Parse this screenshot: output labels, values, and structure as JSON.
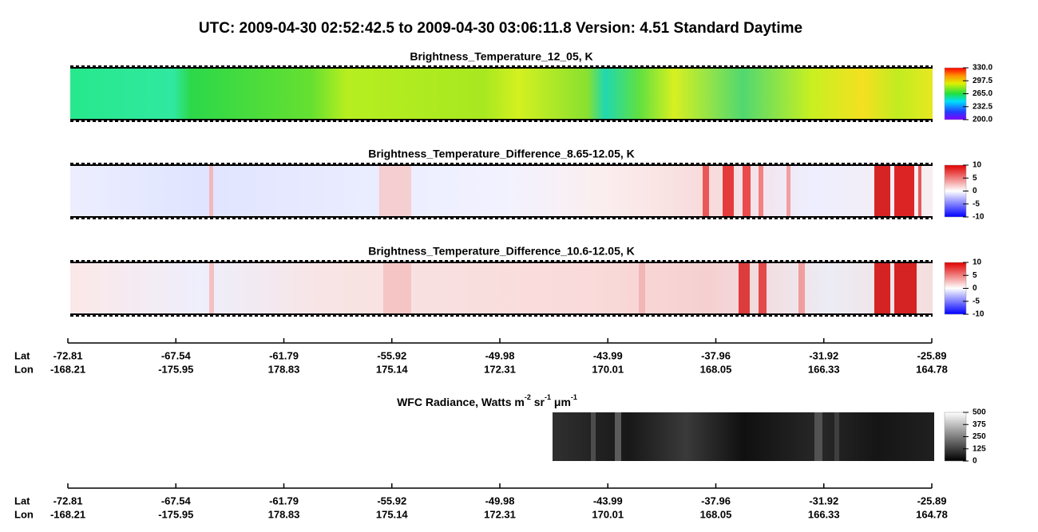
{
  "title": "UTC:  2009-04-30   02:52:42.5  to  2009-04-30   03:06:11.8    Version: 4.51  Standard Daytime",
  "panels": [
    {
      "title": "Brightness_Temperature_12_05, K",
      "colormap": "rainbow",
      "clim": [
        200,
        330
      ],
      "ticks": [
        {
          "value": 330,
          "label": "330.0"
        },
        {
          "value": 297.5,
          "label": "297.5"
        },
        {
          "value": 265,
          "label": "265.0"
        },
        {
          "value": 232.5,
          "label": "232.5"
        },
        {
          "value": 200,
          "label": "200.0"
        }
      ]
    },
    {
      "title": "Brightness_Temperature_Difference_8.65-12.05, K",
      "colormap": "bwr",
      "clim": [
        -10,
        10
      ],
      "ticks": [
        10,
        5,
        0,
        -5,
        -10
      ]
    },
    {
      "title": "Brightness_Temperature_Difference_10.6-12.05, K",
      "colormap": "bwr",
      "clim": [
        -10,
        10
      ],
      "ticks": [
        10,
        5,
        0,
        -5,
        -10
      ]
    },
    {
      "title_segments": [
        "WFC Radiance, Watts m",
        "-2",
        " sr",
        "-1",
        " μm",
        "-1"
      ],
      "colormap": "gray",
      "clim": [
        0,
        500
      ],
      "ticks": [
        500,
        375,
        250,
        125,
        0
      ]
    }
  ],
  "axes": [
    {
      "lat_label": "Lat",
      "lon_label": "Lon",
      "lat": [
        -72.81,
        -67.54,
        -61.79,
        -55.92,
        -49.98,
        -43.99,
        -37.96,
        -31.92,
        -25.89
      ],
      "lon": [
        -168.21,
        -175.95,
        178.83,
        175.14,
        172.31,
        170.01,
        168.05,
        166.33,
        164.78
      ]
    },
    {
      "lat_label": "Lat",
      "lon_label": "Lon",
      "lat": [
        -72.81,
        -67.54,
        -61.79,
        -55.92,
        -49.98,
        -43.99,
        -37.96,
        -31.92,
        -25.89
      ],
      "lon": [
        -168.21,
        -175.95,
        178.83,
        175.14,
        172.31,
        170.01,
        168.05,
        166.33,
        164.78
      ]
    }
  ]
}
